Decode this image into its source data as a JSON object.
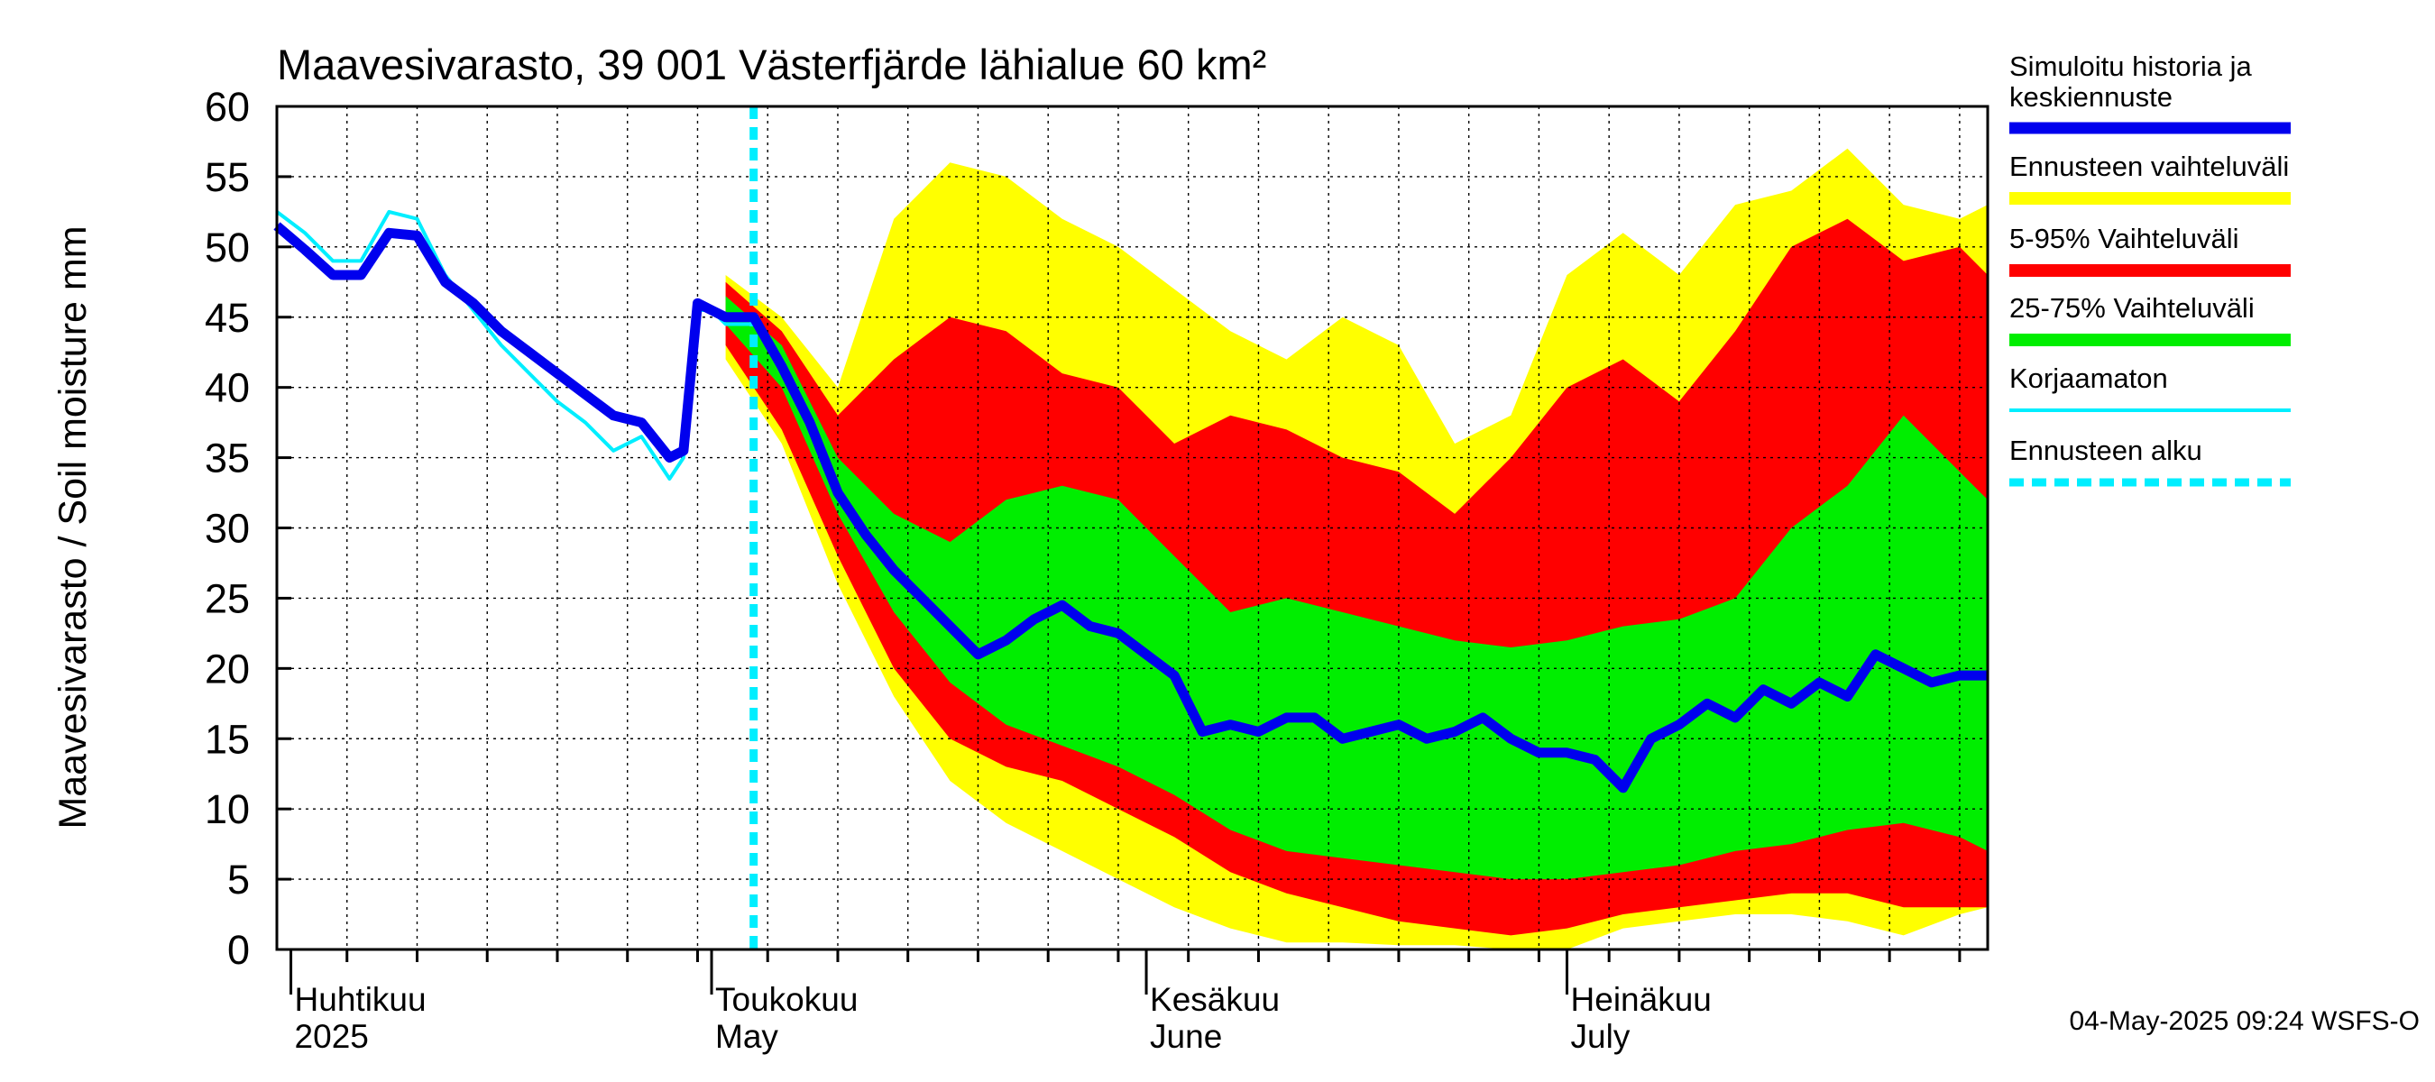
{
  "chart_data": {
    "type": "area",
    "title": "Maavesivarasto, 39 001 Västerfjärde lähialue 60 km²",
    "ylabel": "Maavesivarasto / Soil moisture   mm",
    "xlabel": "",
    "ylim": [
      0,
      60
    ],
    "yticks": [
      0,
      5,
      10,
      15,
      20,
      25,
      30,
      35,
      40,
      45,
      50,
      55,
      60
    ],
    "xlim": [
      "2025-03-31",
      "2025-07-31"
    ],
    "grid": true,
    "legend_position": "right",
    "forecast_start": "2025-05-04",
    "month_labels": [
      {
        "date": "2025-04-01",
        "fi": "Huhtikuu",
        "en": "2025"
      },
      {
        "date": "2025-05-01",
        "fi": "Toukokuu",
        "en": "May"
      },
      {
        "date": "2025-06-01",
        "fi": "Kesäkuu",
        "en": "June"
      },
      {
        "date": "2025-07-01",
        "fi": "Heinäkuu",
        "en": "July"
      }
    ],
    "legend": [
      {
        "label": "Simuloitu historia ja keskiennuste",
        "lines": [
          "Simuloitu historia ja",
          "keskiennuste"
        ],
        "color": "#0000ee",
        "style": "line"
      },
      {
        "label": "Ennusteen vaihteluväli",
        "lines": [
          "Ennusteen vaihteluväli"
        ],
        "color": "#ffff00",
        "style": "band"
      },
      {
        "label": "5-95% Vaihteluväli",
        "lines": [
          "5-95% Vaihteluväli"
        ],
        "color": "#ff0000",
        "style": "band"
      },
      {
        "label": "25-75% Vaihteluväli",
        "lines": [
          "25-75% Vaihteluväli"
        ],
        "color": "#00ee00",
        "style": "band"
      },
      {
        "label": "Korjaamaton",
        "lines": [
          "Korjaamaton"
        ],
        "color": "#00eeff",
        "style": "thin"
      },
      {
        "label": "Ennusteen alku",
        "lines": [
          "Ennusteen alku"
        ],
        "color": "#00eeff",
        "style": "dashed"
      }
    ],
    "timestamp": "04-May-2025 09:24 WSFS-O",
    "series": [
      {
        "name": "Simuloitu historia ja keskiennuste",
        "x": [
          "2025-03-31",
          "2025-04-02",
          "2025-04-04",
          "2025-04-06",
          "2025-04-08",
          "2025-04-10",
          "2025-04-12",
          "2025-04-14",
          "2025-04-16",
          "2025-04-18",
          "2025-04-20",
          "2025-04-22",
          "2025-04-24",
          "2025-04-26",
          "2025-04-28",
          "2025-04-29",
          "2025-04-30",
          "2025-05-01",
          "2025-05-02",
          "2025-05-04",
          "2025-05-06",
          "2025-05-08",
          "2025-05-10",
          "2025-05-12",
          "2025-05-14",
          "2025-05-16",
          "2025-05-18",
          "2025-05-20",
          "2025-05-22",
          "2025-05-24",
          "2025-05-26",
          "2025-05-28",
          "2025-05-30",
          "2025-06-01",
          "2025-06-03",
          "2025-06-05",
          "2025-06-07",
          "2025-06-09",
          "2025-06-11",
          "2025-06-13",
          "2025-06-15",
          "2025-06-17",
          "2025-06-19",
          "2025-06-21",
          "2025-06-23",
          "2025-06-25",
          "2025-06-27",
          "2025-06-29",
          "2025-07-01",
          "2025-07-03",
          "2025-07-05",
          "2025-07-07",
          "2025-07-09",
          "2025-07-11",
          "2025-07-13",
          "2025-07-15",
          "2025-07-17",
          "2025-07-19",
          "2025-07-21",
          "2025-07-23",
          "2025-07-25",
          "2025-07-27",
          "2025-07-29",
          "2025-07-31"
        ],
        "y": [
          51.5,
          49.8,
          48.0,
          48.0,
          51.0,
          50.8,
          47.5,
          46.0,
          44.0,
          42.5,
          41.0,
          39.5,
          38.0,
          37.5,
          35.0,
          35.5,
          46.0,
          45.5,
          45.0,
          45.0,
          41.5,
          37.5,
          32.5,
          29.5,
          27.0,
          25.0,
          23.0,
          21.0,
          22.0,
          23.5,
          24.5,
          23.0,
          22.5,
          21.0,
          19.5,
          15.5,
          16.0,
          15.5,
          16.5,
          16.5,
          15.0,
          15.5,
          16.0,
          15.0,
          15.5,
          16.5,
          15.0,
          14.0,
          14.0,
          13.5,
          11.5,
          15.0,
          16.0,
          17.5,
          16.5,
          18.5,
          17.5,
          19.0,
          18.0,
          21.0,
          20.0,
          19.0,
          19.5,
          19.5
        ]
      },
      {
        "name": "Korjaamaton",
        "x": [
          "2025-03-31",
          "2025-04-02",
          "2025-04-04",
          "2025-04-06",
          "2025-04-08",
          "2025-04-10",
          "2025-04-12",
          "2025-04-14",
          "2025-04-16",
          "2025-04-18",
          "2025-04-20",
          "2025-04-22",
          "2025-04-24",
          "2025-04-26",
          "2025-04-28",
          "2025-04-29",
          "2025-04-30",
          "2025-05-01",
          "2025-05-02",
          "2025-05-04"
        ],
        "y": [
          52.5,
          51.0,
          49.0,
          49.0,
          52.5,
          52.0,
          48.0,
          45.5,
          43.0,
          41.0,
          39.0,
          37.5,
          35.5,
          36.5,
          33.5,
          35.0,
          45.5,
          45.5,
          44.5,
          44.5
        ]
      }
    ],
    "bands": [
      {
        "name": "Ennusteen vaihteluväli",
        "x": [
          "2025-05-02",
          "2025-05-06",
          "2025-05-10",
          "2025-05-14",
          "2025-05-18",
          "2025-05-22",
          "2025-05-26",
          "2025-05-30",
          "2025-06-03",
          "2025-06-07",
          "2025-06-11",
          "2025-06-15",
          "2025-06-19",
          "2025-06-23",
          "2025-06-27",
          "2025-07-01",
          "2025-07-05",
          "2025-07-09",
          "2025-07-13",
          "2025-07-17",
          "2025-07-21",
          "2025-07-25",
          "2025-07-29",
          "2025-07-31"
        ],
        "low": [
          42.0,
          36.0,
          26.0,
          18.0,
          12.0,
          9.0,
          7.0,
          5.0,
          3.0,
          1.5,
          0.5,
          0.5,
          0.3,
          0.3,
          0.0,
          0.0,
          1.5,
          2.0,
          2.5,
          2.5,
          2.0,
          1.0,
          2.5,
          3.0
        ],
        "high": [
          48.0,
          45.0,
          40.0,
          52.0,
          56.0,
          55.0,
          52.0,
          50.0,
          47.0,
          44.0,
          42.0,
          45.0,
          43.0,
          36.0,
          38.0,
          48.0,
          51.0,
          48.0,
          53.0,
          54.0,
          57.0,
          53.0,
          52.0,
          53.0
        ]
      },
      {
        "name": "5-95% Vaihteluväli",
        "x": [
          "2025-05-02",
          "2025-05-06",
          "2025-05-10",
          "2025-05-14",
          "2025-05-18",
          "2025-05-22",
          "2025-05-26",
          "2025-05-30",
          "2025-06-03",
          "2025-06-07",
          "2025-06-11",
          "2025-06-15",
          "2025-06-19",
          "2025-06-23",
          "2025-06-27",
          "2025-07-01",
          "2025-07-05",
          "2025-07-09",
          "2025-07-13",
          "2025-07-17",
          "2025-07-21",
          "2025-07-25",
          "2025-07-29",
          "2025-07-31"
        ],
        "low": [
          43.0,
          37.0,
          28.0,
          20.0,
          15.0,
          13.0,
          12.0,
          10.0,
          8.0,
          5.5,
          4.0,
          3.0,
          2.0,
          1.5,
          1.0,
          1.5,
          2.5,
          3.0,
          3.5,
          4.0,
          4.0,
          3.0,
          3.0,
          3.0
        ],
        "high": [
          47.5,
          44.0,
          38.0,
          42.0,
          45.0,
          44.0,
          41.0,
          40.0,
          36.0,
          38.0,
          37.0,
          35.0,
          34.0,
          31.0,
          35.0,
          40.0,
          42.0,
          39.0,
          44.0,
          50.0,
          52.0,
          49.0,
          50.0,
          48.0
        ]
      },
      {
        "name": "25-75% Vaihteluväli",
        "x": [
          "2025-05-02",
          "2025-05-06",
          "2025-05-10",
          "2025-05-14",
          "2025-05-18",
          "2025-05-22",
          "2025-05-26",
          "2025-05-30",
          "2025-06-03",
          "2025-06-07",
          "2025-06-11",
          "2025-06-15",
          "2025-06-19",
          "2025-06-23",
          "2025-06-27",
          "2025-07-01",
          "2025-07-05",
          "2025-07-09",
          "2025-07-13",
          "2025-07-17",
          "2025-07-21",
          "2025-07-25",
          "2025-07-29",
          "2025-07-31"
        ],
        "low": [
          44.5,
          40.0,
          31.0,
          24.0,
          19.0,
          16.0,
          14.5,
          13.0,
          11.0,
          8.5,
          7.0,
          6.5,
          6.0,
          5.5,
          5.0,
          5.0,
          5.5,
          6.0,
          7.0,
          7.5,
          8.5,
          9.0,
          8.0,
          7.0
        ],
        "high": [
          46.5,
          43.0,
          35.0,
          31.0,
          29.0,
          32.0,
          33.0,
          32.0,
          28.0,
          24.0,
          25.0,
          24.0,
          23.0,
          22.0,
          21.5,
          22.0,
          23.0,
          23.5,
          25.0,
          30.0,
          33.0,
          38.0,
          34.0,
          32.0
        ]
      }
    ]
  }
}
